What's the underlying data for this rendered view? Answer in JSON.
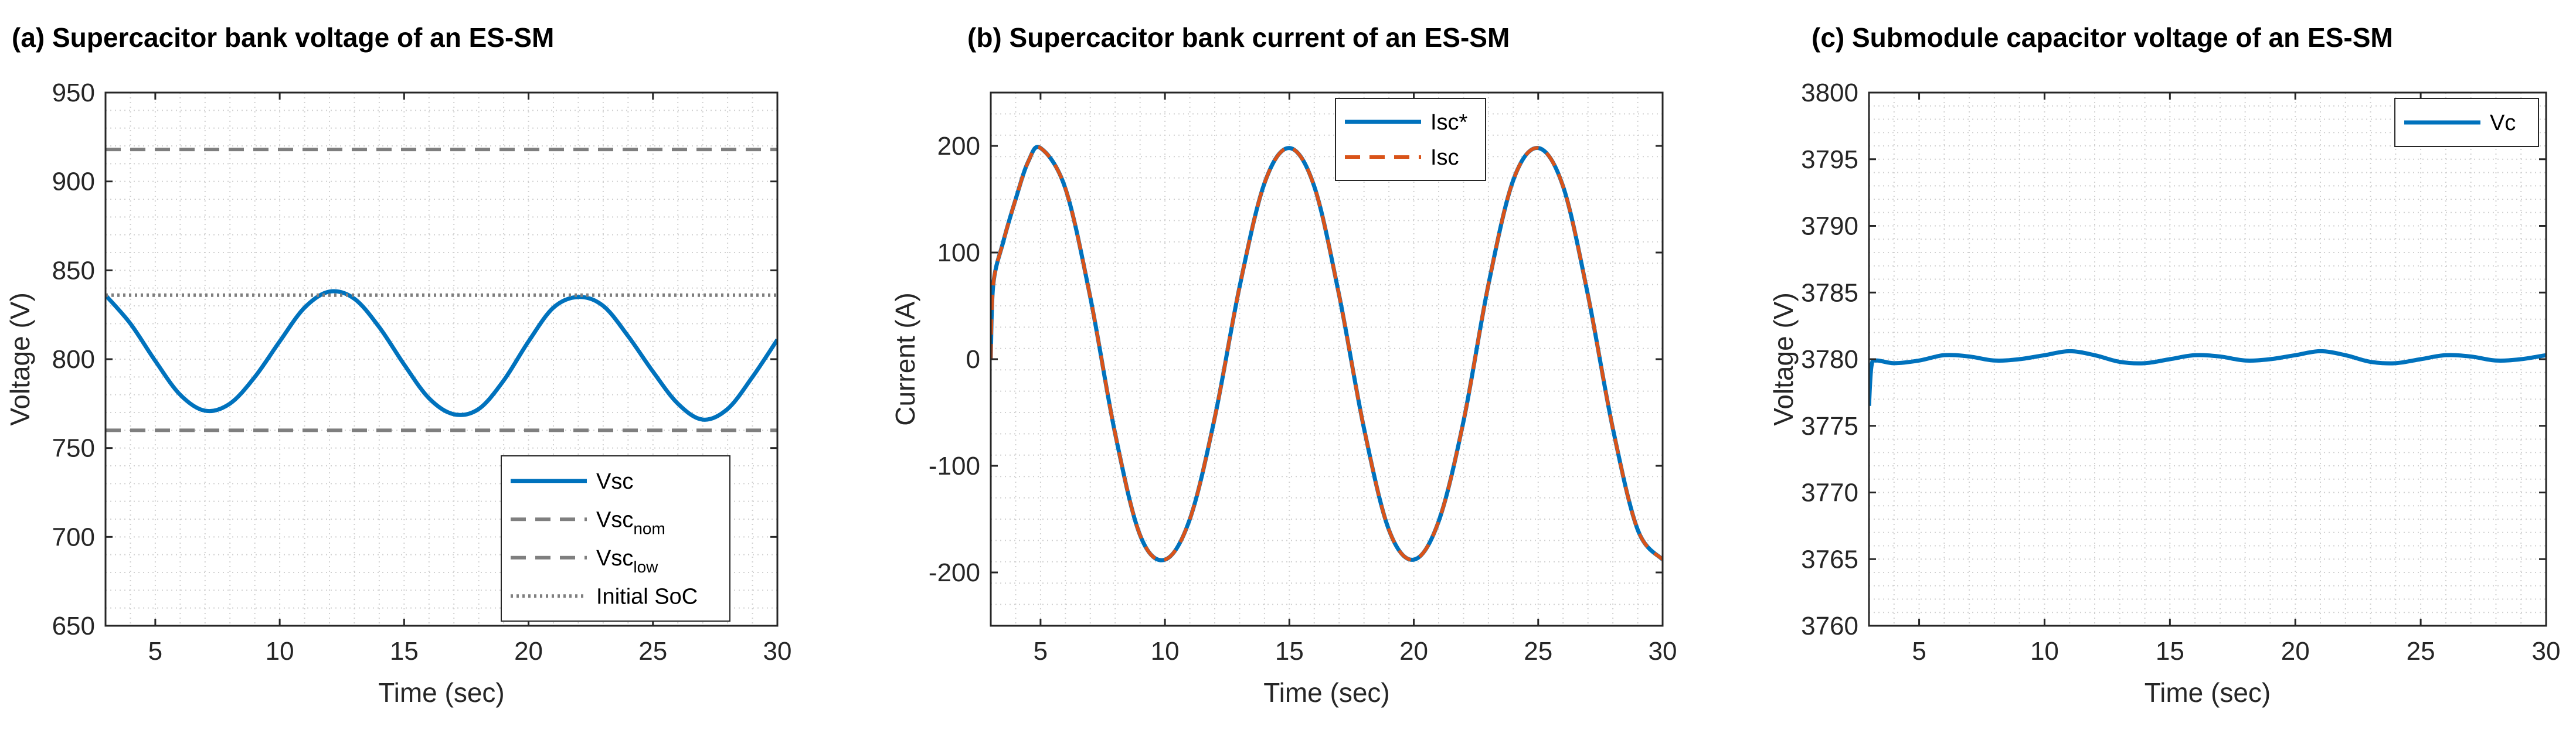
{
  "chart_data": [
    {
      "type": "line",
      "title": "(a) Supercacitor bank voltage of an ES-SM",
      "xlabel": "Time (sec)",
      "ylabel": "Voltage (V)",
      "xlim": [
        3,
        30
      ],
      "ylim": [
        650,
        950
      ],
      "xticks": [
        5,
        10,
        15,
        20,
        25,
        30
      ],
      "yticks": [
        650,
        700,
        750,
        800,
        850,
        900,
        950
      ],
      "grid": "minor-dotted",
      "legend_position": "bottom-right",
      "series": [
        {
          "name": "Vsc",
          "name_sub": "",
          "style": "solid",
          "color": "#0072BD",
          "x": [
            3,
            4,
            5,
            6,
            7,
            8,
            9,
            10,
            11,
            12,
            13,
            14,
            15,
            16,
            17,
            18,
            19,
            20,
            21,
            22,
            23,
            24,
            25,
            26,
            27,
            28,
            29,
            30
          ],
          "y": [
            836,
            820,
            799,
            780,
            771,
            775,
            790,
            810,
            829,
            838,
            834,
            818,
            797,
            778,
            769,
            772,
            788,
            810,
            829,
            835,
            830,
            813,
            793,
            775,
            766,
            772,
            790,
            811
          ]
        },
        {
          "name": "Vsc",
          "name_sub": "nom",
          "style": "dashed",
          "color": "#7f7f7f",
          "x": [
            3,
            30
          ],
          "y": [
            918,
            918
          ]
        },
        {
          "name": "Vsc",
          "name_sub": "low",
          "style": "dashed",
          "color": "#7f7f7f",
          "x": [
            3,
            30
          ],
          "y": [
            760,
            760
          ]
        },
        {
          "name": "Initial SoC",
          "name_sub": "",
          "style": "dotted",
          "color": "#7f7f7f",
          "x": [
            3,
            30
          ],
          "y": [
            836,
            836
          ]
        }
      ]
    },
    {
      "type": "line",
      "title": "(b) Supercacitor bank current of an ES-SM",
      "xlabel": "Time (sec)",
      "ylabel": "Current (A)",
      "xlim": [
        3,
        30
      ],
      "ylim": [
        -250,
        250
      ],
      "xticks": [
        5,
        10,
        15,
        20,
        25,
        30
      ],
      "yticks": [
        -200,
        -100,
        0,
        100,
        200
      ],
      "grid": "minor-dotted",
      "legend_position": "top-center",
      "series": [
        {
          "name": "Isc*",
          "style": "solid",
          "color": "#0072BD",
          "x": [
            3,
            3.1,
            3.5,
            4,
            4.5,
            5,
            6,
            7,
            8,
            9,
            10,
            11,
            12,
            13,
            14,
            15,
            16,
            17,
            18,
            19,
            20,
            21,
            22,
            23,
            24,
            25,
            26,
            27,
            28,
            29,
            30
          ],
          "y": [
            0,
            70,
            110,
            150,
            185,
            198,
            160,
            58,
            -70,
            -165,
            -188,
            -150,
            -55,
            68,
            165,
            198,
            162,
            60,
            -65,
            -160,
            -188,
            -152,
            -58,
            70,
            168,
            198,
            162,
            60,
            -65,
            -160,
            -188
          ]
        },
        {
          "name": "Isc",
          "style": "dashed",
          "color": "#D95319",
          "x": [
            3,
            3.1,
            3.5,
            4,
            4.5,
            5,
            6,
            7,
            8,
            9,
            10,
            11,
            12,
            13,
            14,
            15,
            16,
            17,
            18,
            19,
            20,
            21,
            22,
            23,
            24,
            25,
            26,
            27,
            28,
            29,
            30
          ],
          "y": [
            0,
            70,
            110,
            150,
            185,
            198,
            160,
            58,
            -70,
            -165,
            -188,
            -150,
            -55,
            68,
            165,
            198,
            162,
            60,
            -65,
            -160,
            -188,
            -152,
            -58,
            70,
            168,
            198,
            162,
            60,
            -65,
            -160,
            -188
          ]
        }
      ]
    },
    {
      "type": "line",
      "title": "(c) Submodule capacitor voltage of an ES-SM",
      "xlabel": "Time (sec)",
      "ylabel": "Voltage (V)",
      "xlim": [
        3,
        30
      ],
      "ylim": [
        3760,
        3800
      ],
      "xticks": [
        5,
        10,
        15,
        20,
        25,
        30
      ],
      "yticks": [
        3760,
        3765,
        3770,
        3775,
        3780,
        3785,
        3790,
        3795,
        3800
      ],
      "grid": "minor-dotted",
      "legend_position": "top-right",
      "series": [
        {
          "name": "Vc",
          "style": "solid",
          "color": "#0072BD",
          "x": [
            3,
            3.1,
            3.3,
            4,
            5,
            6,
            7,
            8,
            9,
            10,
            11,
            12,
            13,
            14,
            15,
            16,
            17,
            18,
            19,
            20,
            21,
            22,
            23,
            24,
            25,
            26,
            27,
            28,
            29,
            30
          ],
          "y": [
            3776.5,
            3779.5,
            3779.9,
            3779.7,
            3779.9,
            3780.3,
            3780.2,
            3779.9,
            3780.0,
            3780.3,
            3780.6,
            3780.3,
            3779.8,
            3779.7,
            3780.0,
            3780.3,
            3780.2,
            3779.9,
            3780.0,
            3780.3,
            3780.6,
            3780.3,
            3779.8,
            3779.7,
            3780.0,
            3780.3,
            3780.2,
            3779.9,
            3780.0,
            3780.3
          ]
        }
      ]
    }
  ]
}
